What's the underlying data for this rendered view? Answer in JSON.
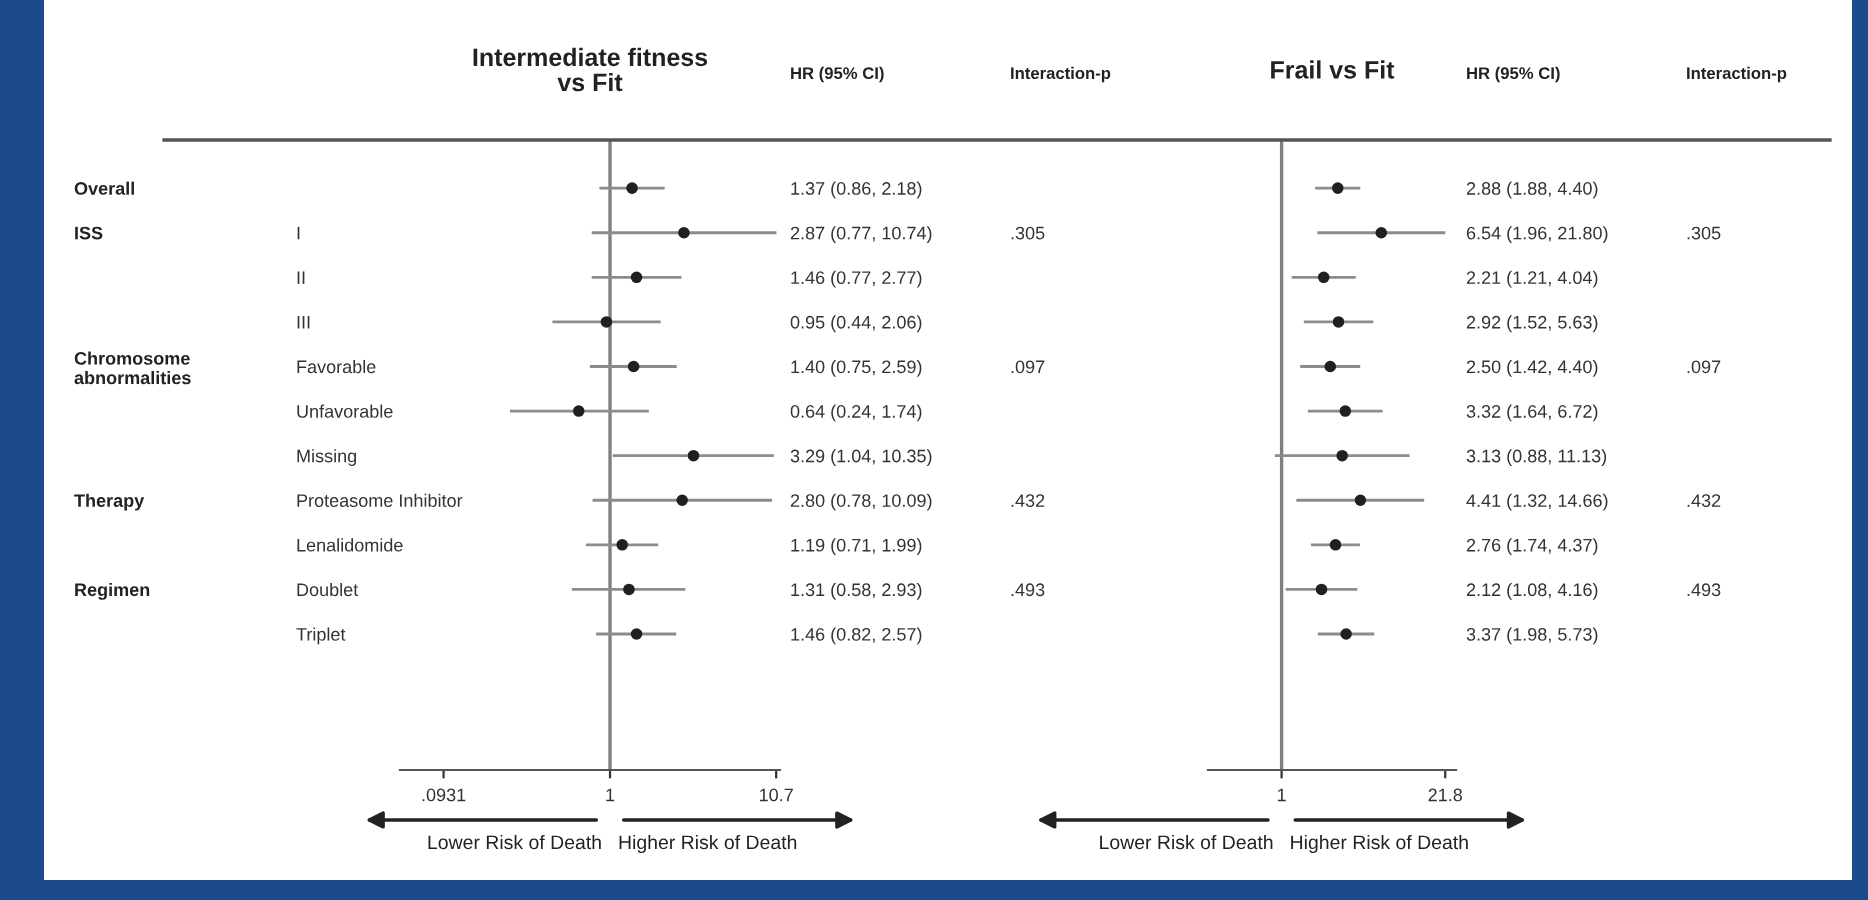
{
  "chart_data": [
    {
      "type": "other",
      "categories": [
        "Overall",
        "ISS",
        null,
        null,
        "Chromosome\nabnormalities",
        null,
        null,
        "Therapy",
        null,
        "Regimen",
        null
      ]
    },
    {
      "type": "scatter",
      "orientation": "horizontal",
      "title": "Intermediate fitness\nvs Fit",
      "log": "x",
      "marker": "circle",
      "tick_labels": "xy",
      "categories": [
        null,
        "I",
        "II",
        "III",
        "Favorable",
        "Unfavorable",
        "Missing",
        "Proteasome Inhibitor",
        "Lenalidomide",
        "Doublet",
        "Triplet"
      ],
      "xlim": [
        0.05,
        11.3
      ],
      "xticks": [
        {
          "value": 0.0931,
          "label": ".0931"
        },
        1,
        10.7
      ],
      "ref_lines": [
        {
          "axis": "x",
          "value": 1,
          "color": "#7f7f7f"
        }
      ],
      "series": [
        {
          "color": "#202020",
          "values": [
            1.37,
            2.87,
            1.46,
            0.95,
            1.4,
            0.64,
            3.29,
            2.8,
            1.19,
            1.31,
            1.46
          ],
          "errors": [
            [
              0.86,
              2.18
            ],
            [
              0.77,
              10.74
            ],
            [
              0.77,
              2.77
            ],
            [
              0.44,
              2.06
            ],
            [
              0.75,
              2.59
            ],
            [
              0.24,
              1.74
            ],
            [
              1.04,
              10.35
            ],
            [
              0.78,
              10.09
            ],
            [
              0.71,
              1.99
            ],
            [
              0.58,
              2.93
            ],
            [
              0.82,
              2.57
            ]
          ]
        }
      ],
      "annotations": [
        "Lower Risk of Death",
        "Higher Risk of Death"
      ]
    },
    {
      "type": "other",
      "title": "HR (95% CI)",
      "categories": [
        "1.37 (0.86, 2.18)",
        "2.87 (0.77, 10.74)",
        "1.46 (0.77, 2.77)",
        "0.95 (0.44, 2.06)",
        "1.40 (0.75, 2.59)",
        "0.64 (0.24, 1.74)",
        "3.29 (1.04, 10.35)",
        "2.80 (0.78, 10.09)",
        "1.19 (0.71, 1.99)",
        "1.31 (0.58, 2.93)",
        "1.46 (0.82, 2.57)"
      ]
    },
    {
      "type": "other",
      "title": "Interaction-p",
      "categories": [
        null,
        ".305",
        null,
        null,
        ".097",
        null,
        null,
        ".432",
        null,
        ".493",
        null
      ]
    },
    {
      "type": "scatter",
      "orientation": "horizontal",
      "title": "Frail vs Fit",
      "log": "x",
      "marker": "circle",
      "tick_labels": "x",
      "categories": [
        null,
        null,
        null,
        null,
        null,
        null,
        null,
        null,
        null,
        null,
        null
      ],
      "xlim": [
        0.25,
        26.7
      ],
      "xticks": [
        1,
        21.8
      ],
      "ref_lines": [
        {
          "axis": "x",
          "value": 1,
          "color": "#7f7f7f"
        }
      ],
      "series": [
        {
          "color": "#202020",
          "values": [
            2.88,
            6.54,
            2.21,
            2.92,
            2.5,
            3.32,
            3.13,
            4.41,
            2.76,
            2.12,
            3.37
          ],
          "errors": [
            [
              1.88,
              4.4
            ],
            [
              1.96,
              21.8
            ],
            [
              1.21,
              4.04
            ],
            [
              1.52,
              5.63
            ],
            [
              1.42,
              4.4
            ],
            [
              1.64,
              6.72
            ],
            [
              0.88,
              11.13
            ],
            [
              1.32,
              14.66
            ],
            [
              1.74,
              4.37
            ],
            [
              1.08,
              4.16
            ],
            [
              1.98,
              5.73
            ]
          ]
        }
      ],
      "annotations": [
        "Lower Risk of Death",
        "Higher Risk of Death"
      ]
    },
    {
      "type": "other",
      "title": "HR (95% CI)",
      "categories": [
        "2.88 (1.88, 4.40)",
        "6.54 (1.96, 21.80)",
        "2.21 (1.21, 4.04)",
        "2.92 (1.52, 5.63)",
        "2.50 (1.42, 4.40)",
        "3.32 (1.64, 6.72)",
        "3.13 (0.88, 11.13)",
        "4.41 (1.32, 14.66)",
        "2.76 (1.74, 4.37)",
        "2.12 (1.08, 4.16)",
        "3.37 (1.98, 5.73)"
      ]
    },
    {
      "type": "other",
      "title": "Interaction-p",
      "categories": [
        null,
        ".305",
        null,
        null,
        ".097",
        null,
        null,
        ".432",
        null,
        ".493",
        null
      ]
    }
  ]
}
